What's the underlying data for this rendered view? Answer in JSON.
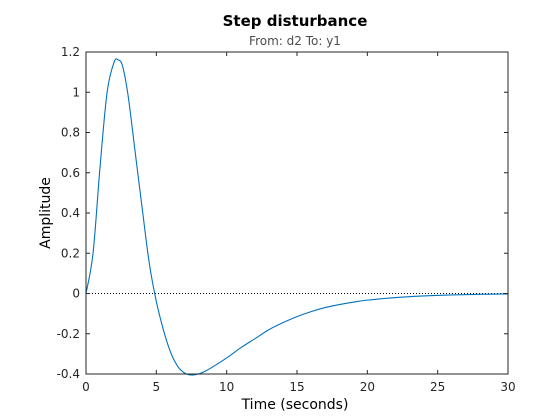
{
  "chart_data": {
    "type": "line",
    "title": "Step disturbance",
    "subtitle": "From: d2  To: y1",
    "xlabel": "Time (seconds)",
    "ylabel": "Amplitude",
    "xlim": [
      0,
      30
    ],
    "ylim": [
      -0.4,
      1.2
    ],
    "xticks": [
      "0",
      "5",
      "10",
      "15",
      "20",
      "25",
      "30"
    ],
    "yticks": [
      "-0.4",
      "-0.2",
      "0",
      "0.2",
      "0.4",
      "0.6",
      "0.8",
      "1",
      "1.2"
    ],
    "grid": false,
    "legend": "none",
    "reference_line": {
      "y": 0,
      "style": "dotted",
      "color": "#000000"
    },
    "series": [
      {
        "color": "#0072bd",
        "x": [
          0,
          0.5,
          1,
          1.5,
          2,
          2.3,
          2.6,
          3,
          3.5,
          4,
          4.5,
          5,
          5.5,
          6,
          6.5,
          7,
          7.5,
          8,
          8.5,
          9,
          10,
          11,
          12,
          13,
          14,
          15,
          16,
          17,
          18,
          19,
          20,
          22,
          24,
          26,
          28,
          30
        ],
        "y": [
          0,
          0.2,
          0.63,
          1.0,
          1.15,
          1.16,
          1.13,
          0.98,
          0.7,
          0.42,
          0.15,
          -0.04,
          -0.18,
          -0.29,
          -0.36,
          -0.395,
          -0.405,
          -0.4,
          -0.385,
          -0.365,
          -0.32,
          -0.27,
          -0.225,
          -0.18,
          -0.145,
          -0.115,
          -0.09,
          -0.07,
          -0.055,
          -0.043,
          -0.033,
          -0.02,
          -0.012,
          -0.007,
          -0.004,
          -0.002
        ]
      }
    ]
  }
}
